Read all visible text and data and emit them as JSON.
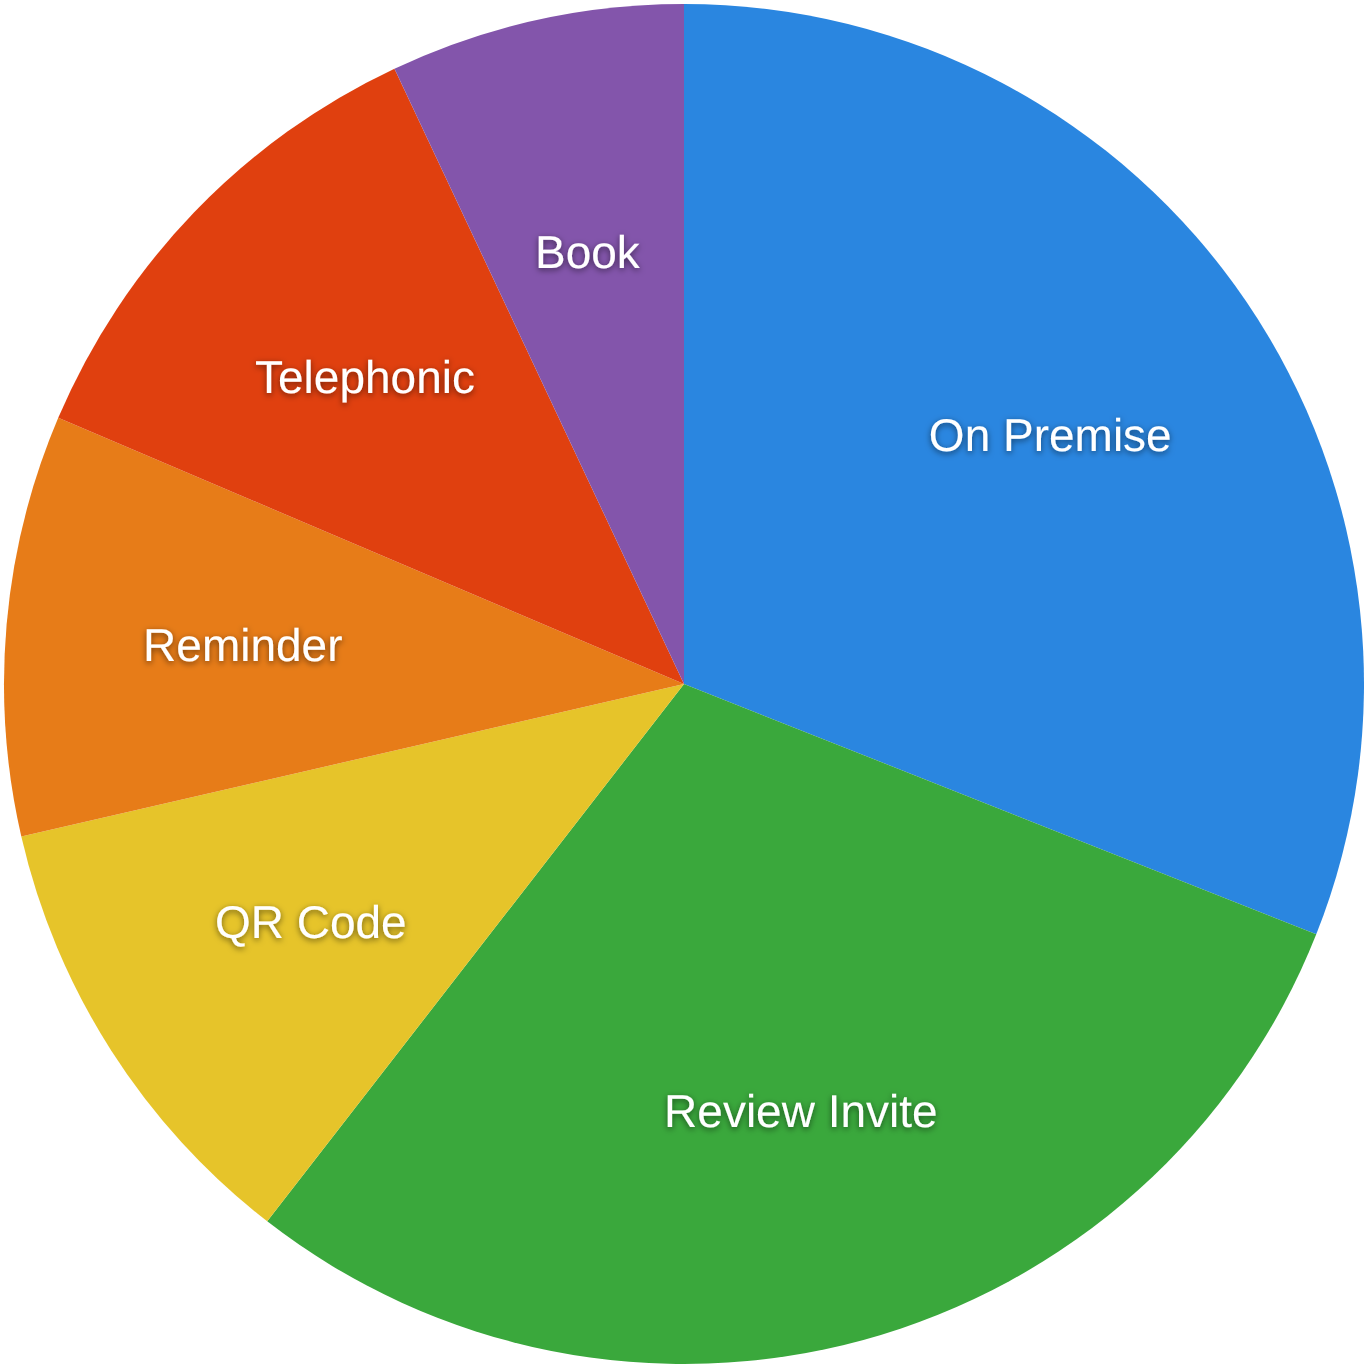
{
  "chart_data": {
    "type": "pie",
    "categories": [
      "On Premise",
      "Review Invite",
      "QR Code",
      "Reminder",
      "Telephonic",
      "Book"
    ],
    "values": [
      31,
      29.5,
      10.9,
      10,
      11.6,
      7
    ],
    "colors": [
      "#2a86e0",
      "#3aa83c",
      "#e6c42a",
      "#e77c18",
      "#e0400f",
      "#8355ab"
    ]
  }
}
